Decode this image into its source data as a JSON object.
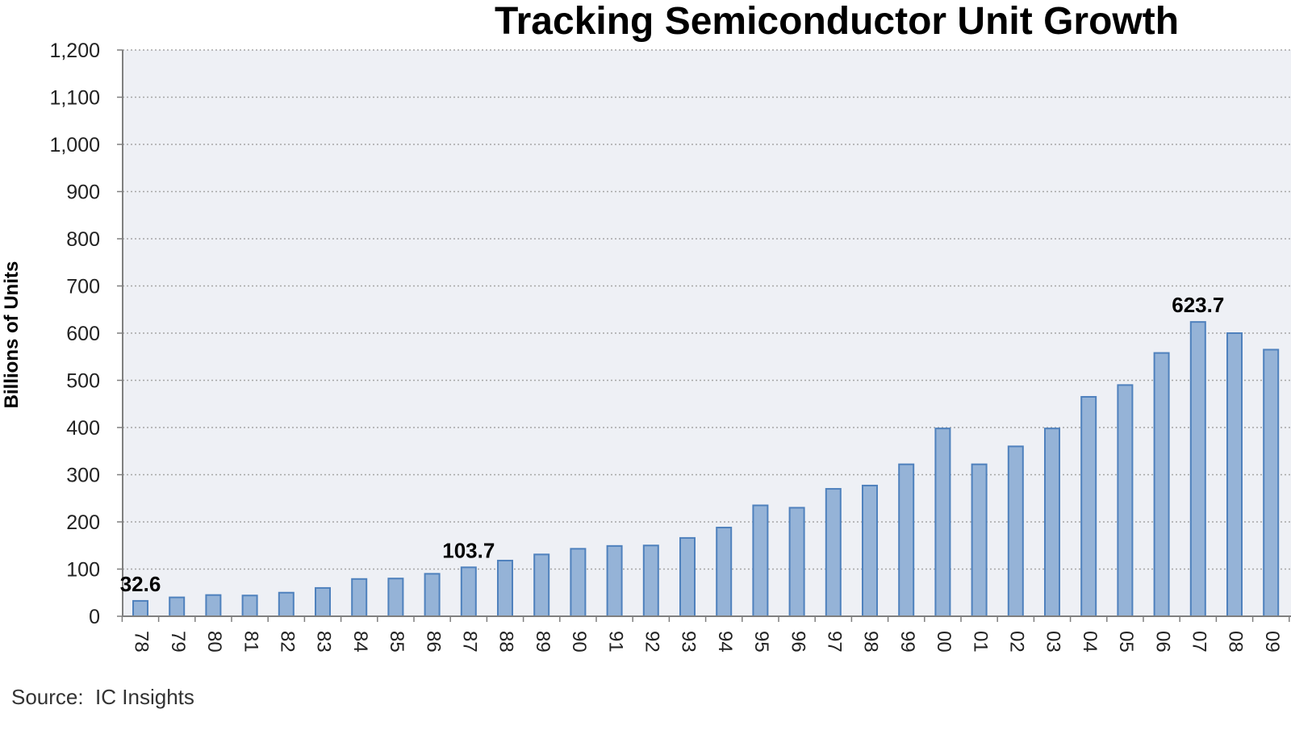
{
  "chart_data": {
    "type": "bar",
    "title": "Tracking Semiconductor Unit Growth",
    "xlabel": "",
    "ylabel": "Billions of Units",
    "source": "Source:  IC Insights",
    "categories": [
      "78",
      "79",
      "80",
      "81",
      "82",
      "83",
      "84",
      "85",
      "86",
      "87",
      "88",
      "89",
      "90",
      "91",
      "92",
      "93",
      "94",
      "95",
      "96",
      "97",
      "98",
      "99",
      "00",
      "01",
      "02",
      "03",
      "04",
      "05",
      "06",
      "07",
      "08",
      "09"
    ],
    "values": [
      32.6,
      40,
      45,
      44,
      50,
      60,
      79,
      80,
      90,
      103.7,
      118,
      131,
      143,
      149,
      150,
      166,
      188,
      235,
      230,
      270,
      277,
      322,
      398,
      322,
      360,
      398,
      465,
      490,
      558,
      623.7,
      600,
      565
    ],
    "data_labels": [
      {
        "category": "78",
        "text": "32.6"
      },
      {
        "category": "87",
        "text": "103.7"
      },
      {
        "category": "07",
        "text": "623.7"
      }
    ],
    "ylim": [
      0,
      1200
    ],
    "yticks": [
      0,
      100,
      200,
      300,
      400,
      500,
      600,
      700,
      800,
      900,
      1000,
      1100,
      1200
    ],
    "ytick_labels": [
      "0",
      "100",
      "200",
      "300",
      "400",
      "500",
      "600",
      "700",
      "800",
      "900",
      "1,000",
      "1,100",
      "1,200"
    ],
    "grid": true,
    "colors": {
      "bar_fill": "#95b3d7",
      "bar_stroke": "#4f81bd",
      "plot_background": "#eef0f5",
      "gridline": "#a6a6a6",
      "axis": "#7f7f7f",
      "text": "#000000"
    }
  }
}
